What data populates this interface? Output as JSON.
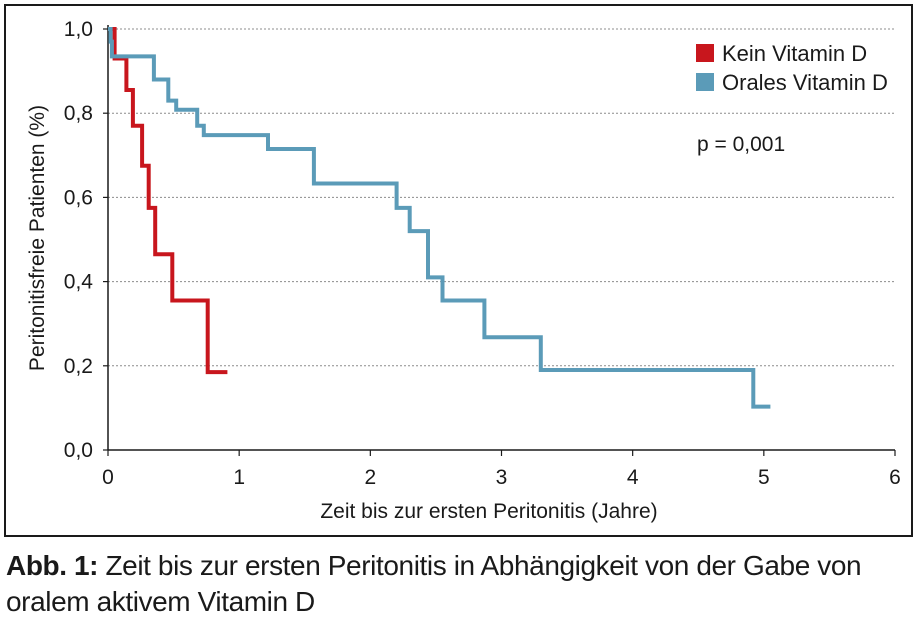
{
  "chart_data": {
    "type": "line",
    "step": true,
    "xlabel": "Zeit bis zur ersten Peritonitis (Jahre)",
    "ylabel": "Peritonitisfreie Patienten (%)",
    "xlim": [
      0,
      6
    ],
    "ylim": [
      0,
      1
    ],
    "x_ticks": [
      "0",
      "1",
      "2",
      "3",
      "4",
      "5",
      "6"
    ],
    "y_ticks": [
      "0,0",
      "0,2",
      "0,4",
      "0,6",
      "0,8",
      "1,0"
    ],
    "grid": "horizontal-dashed",
    "legend_position": "top-right",
    "annotation": "p = 0,001",
    "series": [
      {
        "name": "Kein Vitamin D",
        "color": "#c8161d",
        "points": [
          [
            0.0,
            1.0
          ],
          [
            0.05,
            1.0
          ],
          [
            0.05,
            0.93
          ],
          [
            0.14,
            0.93
          ],
          [
            0.14,
            0.855
          ],
          [
            0.19,
            0.855
          ],
          [
            0.19,
            0.77
          ],
          [
            0.26,
            0.77
          ],
          [
            0.26,
            0.675
          ],
          [
            0.31,
            0.675
          ],
          [
            0.31,
            0.575
          ],
          [
            0.36,
            0.575
          ],
          [
            0.36,
            0.465
          ],
          [
            0.49,
            0.465
          ],
          [
            0.49,
            0.355
          ],
          [
            0.76,
            0.355
          ],
          [
            0.76,
            0.185
          ],
          [
            0.91,
            0.185
          ]
        ]
      },
      {
        "name": "Orales Vitamin D",
        "color": "#5b9bb8",
        "points": [
          [
            0.0,
            1.0
          ],
          [
            0.02,
            1.0
          ],
          [
            0.02,
            0.97
          ],
          [
            0.03,
            0.97
          ],
          [
            0.03,
            0.935
          ],
          [
            0.35,
            0.935
          ],
          [
            0.35,
            0.88
          ],
          [
            0.46,
            0.88
          ],
          [
            0.46,
            0.83
          ],
          [
            0.52,
            0.83
          ],
          [
            0.52,
            0.808
          ],
          [
            0.68,
            0.808
          ],
          [
            0.68,
            0.77
          ],
          [
            0.73,
            0.77
          ],
          [
            0.73,
            0.748
          ],
          [
            1.22,
            0.748
          ],
          [
            1.22,
            0.715
          ],
          [
            1.57,
            0.715
          ],
          [
            1.57,
            0.633
          ],
          [
            2.2,
            0.633
          ],
          [
            2.2,
            0.575
          ],
          [
            2.3,
            0.575
          ],
          [
            2.3,
            0.52
          ],
          [
            2.44,
            0.52
          ],
          [
            2.44,
            0.41
          ],
          [
            2.55,
            0.41
          ],
          [
            2.55,
            0.355
          ],
          [
            2.87,
            0.355
          ],
          [
            2.87,
            0.268
          ],
          [
            3.3,
            0.268
          ],
          [
            3.3,
            0.19
          ],
          [
            4.92,
            0.19
          ],
          [
            4.92,
            0.103
          ],
          [
            5.05,
            0.103
          ]
        ]
      }
    ]
  },
  "caption": {
    "lead": "Abb. 1:",
    "text": " Zeit bis zur ersten Peritonitis in Abhängigkeit von der Gabe von oralem aktivem Vitamin D"
  }
}
